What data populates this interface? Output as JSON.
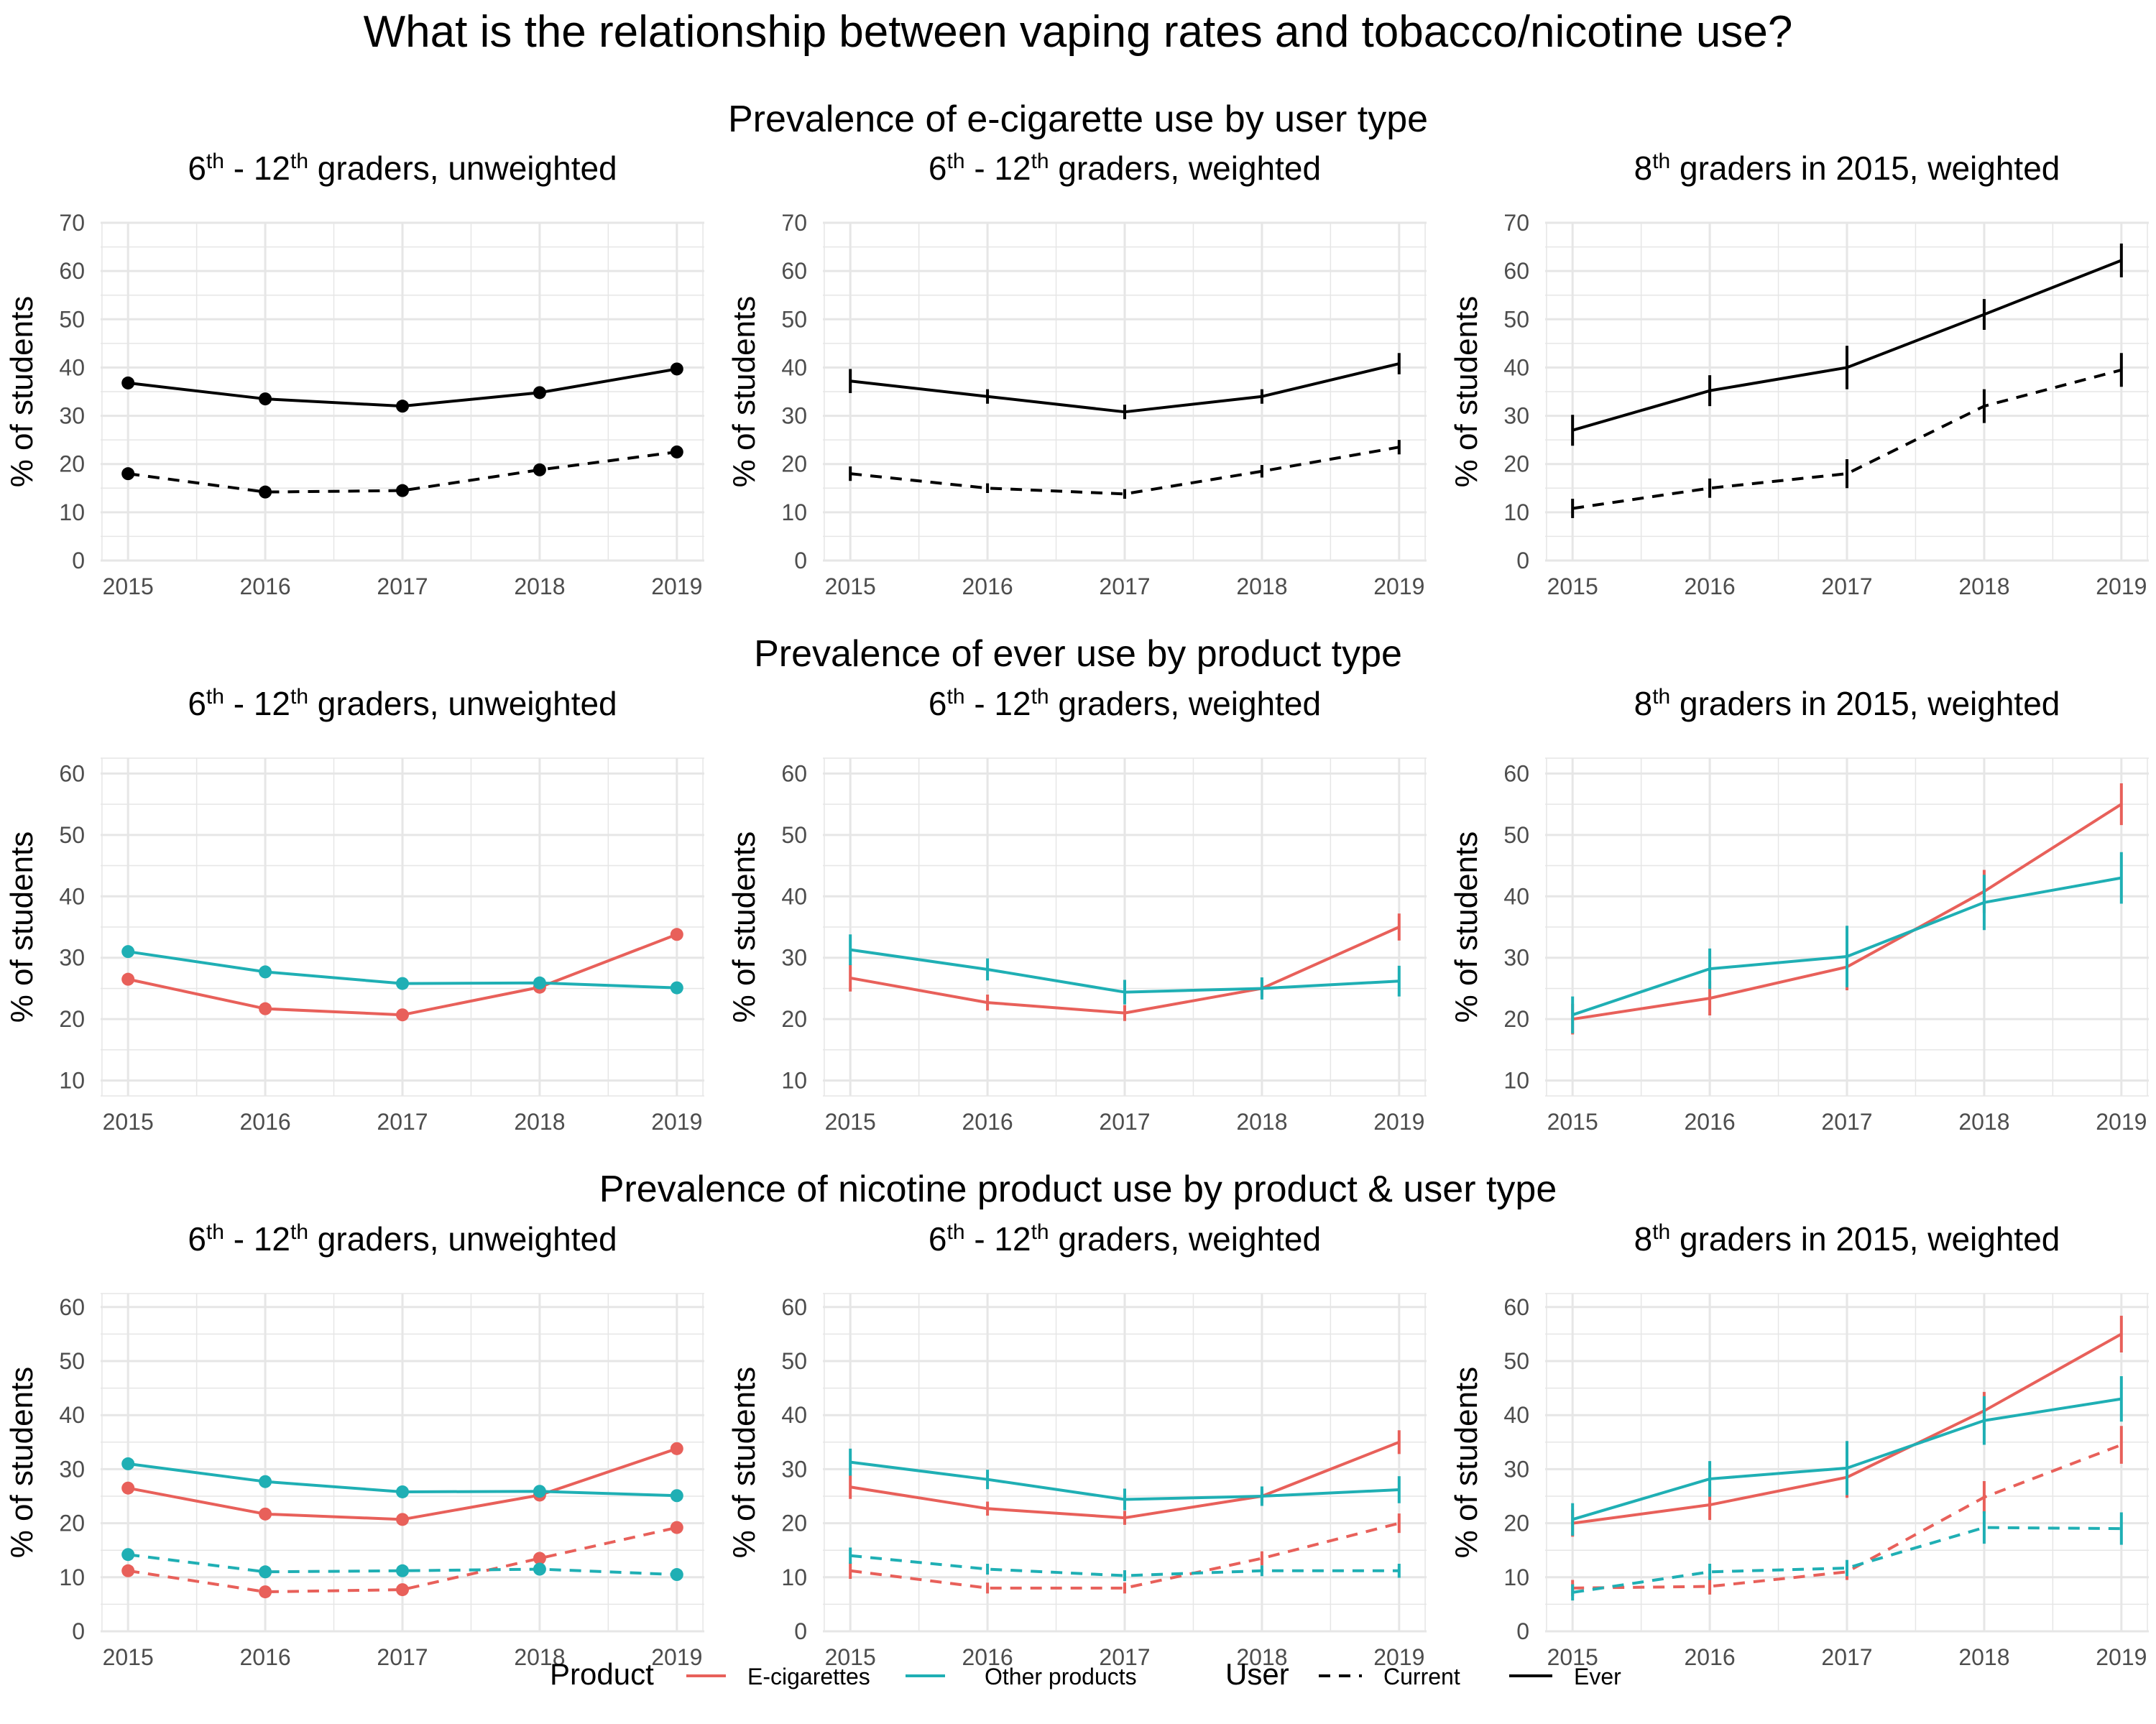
{
  "title": "What is the relationship between vaping rates and tobacco/nicotine use?",
  "colors": {
    "ecig": "#E8605A",
    "other": "#1FAFB4",
    "single": "#000000",
    "grid": "#E6E6E6"
  },
  "row_titles": [
    "Prevalence of e-cigarette use by user type",
    "Prevalence of ever use by product type",
    "Prevalence of nicotine product use by product & user type"
  ],
  "panel_titles": [
    {
      "a": "6",
      "a_sup": "th",
      "b": " - 12",
      "b_sup": "th",
      "c": " graders, unweighted"
    },
    {
      "a": "6",
      "a_sup": "th",
      "b": " - 12",
      "b_sup": "th",
      "c": " graders, weighted"
    },
    {
      "a": "8",
      "a_sup": "th",
      "b": " graders in 2015, weighted",
      "b_sup": "",
      "c": ""
    }
  ],
  "ylabel": "% of students",
  "legend": {
    "product_title": "Product",
    "product_items": [
      "E-cigarettes",
      "Other products"
    ],
    "user_title": "User",
    "user_items": [
      "Current",
      "Ever"
    ]
  },
  "chart_data": [
    {
      "type": "line",
      "row": 0,
      "col": 0,
      "markers": "points",
      "x": [
        2015,
        2016,
        2017,
        2018,
        2019
      ],
      "ylim": [
        0,
        70
      ],
      "yticks": [
        0,
        10,
        20,
        30,
        40,
        50,
        60,
        70
      ],
      "series": [
        {
          "product": "single",
          "user": "Ever",
          "values": [
            36.8,
            33.5,
            32.0,
            34.8,
            39.7
          ]
        },
        {
          "product": "single",
          "user": "Current",
          "values": [
            18.0,
            14.2,
            14.5,
            18.8,
            22.5
          ]
        }
      ]
    },
    {
      "type": "line",
      "row": 0,
      "col": 1,
      "markers": "errorbars",
      "x": [
        2015,
        2016,
        2017,
        2018,
        2019
      ],
      "ylim": [
        0,
        70
      ],
      "yticks": [
        0,
        10,
        20,
        30,
        40,
        50,
        60,
        70
      ],
      "series": [
        {
          "product": "single",
          "user": "Ever",
          "values": [
            37.2,
            34.0,
            30.8,
            34.0,
            40.8
          ],
          "err": [
            2.5,
            1.5,
            1.5,
            1.5,
            2.2
          ]
        },
        {
          "product": "single",
          "user": "Current",
          "values": [
            18.0,
            15.0,
            13.8,
            18.5,
            23.5
          ],
          "err": [
            1.5,
            1.0,
            1.0,
            1.3,
            1.5
          ]
        }
      ]
    },
    {
      "type": "line",
      "row": 0,
      "col": 2,
      "markers": "errorbars",
      "x": [
        2015,
        2016,
        2017,
        2018,
        2019
      ],
      "ylim": [
        0,
        70
      ],
      "yticks": [
        0,
        10,
        20,
        30,
        40,
        50,
        60,
        70
      ],
      "series": [
        {
          "product": "single",
          "user": "Ever",
          "values": [
            27.0,
            35.2,
            40.0,
            51.0,
            62.2
          ],
          "err": [
            3.2,
            3.2,
            4.5,
            3.2,
            3.5
          ]
        },
        {
          "product": "single",
          "user": "Current",
          "values": [
            10.8,
            15.0,
            18.0,
            32.0,
            39.5
          ],
          "err": [
            2.0,
            2.0,
            3.0,
            3.5,
            3.5
          ]
        }
      ]
    },
    {
      "type": "line",
      "row": 1,
      "col": 0,
      "markers": "points",
      "x": [
        2015,
        2016,
        2017,
        2018,
        2019
      ],
      "ylim": [
        7.5,
        62.5
      ],
      "yticks": [
        10,
        20,
        30,
        40,
        50,
        60
      ],
      "series": [
        {
          "product": "E-cigarettes",
          "user": "Ever",
          "values": [
            26.5,
            21.7,
            20.7,
            25.2,
            33.8
          ]
        },
        {
          "product": "Other products",
          "user": "Ever",
          "values": [
            31.0,
            27.7,
            25.8,
            25.9,
            25.1
          ]
        }
      ]
    },
    {
      "type": "line",
      "row": 1,
      "col": 1,
      "markers": "errorbars",
      "x": [
        2015,
        2016,
        2017,
        2018,
        2019
      ],
      "ylim": [
        7.5,
        62.5
      ],
      "yticks": [
        10,
        20,
        30,
        40,
        50,
        60
      ],
      "series": [
        {
          "product": "E-cigarettes",
          "user": "Ever",
          "values": [
            26.7,
            22.7,
            21.0,
            25.0,
            35.0
          ],
          "err": [
            2.2,
            1.3,
            1.3,
            1.3,
            2.2
          ]
        },
        {
          "product": "Other products",
          "user": "Ever",
          "values": [
            31.3,
            28.1,
            24.4,
            25.0,
            26.2
          ],
          "err": [
            2.5,
            1.8,
            2.0,
            1.8,
            2.5
          ]
        }
      ]
    },
    {
      "type": "line",
      "row": 1,
      "col": 2,
      "markers": "errorbars",
      "x": [
        2015,
        2016,
        2017,
        2018,
        2019
      ],
      "ylim": [
        7.5,
        62.5
      ],
      "yticks": [
        10,
        20,
        30,
        40,
        50,
        60
      ],
      "series": [
        {
          "product": "E-cigarettes",
          "user": "Ever",
          "values": [
            20.0,
            23.4,
            28.5,
            40.8,
            55.0
          ],
          "err": [
            2.5,
            2.8,
            3.8,
            3.5,
            3.4
          ]
        },
        {
          "product": "Other products",
          "user": "Ever",
          "values": [
            20.7,
            28.2,
            30.2,
            39.0,
            43.0
          ],
          "err": [
            3.0,
            3.3,
            5.0,
            4.5,
            4.2
          ]
        }
      ]
    },
    {
      "type": "line",
      "row": 2,
      "col": 0,
      "markers": "points",
      "x": [
        2015,
        2016,
        2017,
        2018,
        2019
      ],
      "ylim": [
        0,
        62.5
      ],
      "yticks": [
        0,
        10,
        20,
        30,
        40,
        50,
        60
      ],
      "series": [
        {
          "product": "E-cigarettes",
          "user": "Ever",
          "values": [
            26.5,
            21.7,
            20.7,
            25.2,
            33.8
          ]
        },
        {
          "product": "Other products",
          "user": "Ever",
          "values": [
            31.0,
            27.7,
            25.8,
            25.9,
            25.1
          ]
        },
        {
          "product": "E-cigarettes",
          "user": "Current",
          "values": [
            11.2,
            7.3,
            7.7,
            13.5,
            19.2
          ]
        },
        {
          "product": "Other products",
          "user": "Current",
          "values": [
            14.2,
            11.0,
            11.2,
            11.5,
            10.5
          ]
        }
      ]
    },
    {
      "type": "line",
      "row": 2,
      "col": 1,
      "markers": "errorbars",
      "x": [
        2015,
        2016,
        2017,
        2018,
        2019
      ],
      "ylim": [
        0,
        62.5
      ],
      "yticks": [
        0,
        10,
        20,
        30,
        40,
        50,
        60
      ],
      "series": [
        {
          "product": "E-cigarettes",
          "user": "Ever",
          "values": [
            26.7,
            22.7,
            21.0,
            25.0,
            35.0
          ],
          "err": [
            2.2,
            1.3,
            1.3,
            1.3,
            2.2
          ]
        },
        {
          "product": "Other products",
          "user": "Ever",
          "values": [
            31.3,
            28.1,
            24.4,
            25.0,
            26.2
          ],
          "err": [
            2.5,
            1.8,
            2.0,
            1.8,
            2.5
          ]
        },
        {
          "product": "E-cigarettes",
          "user": "Current",
          "values": [
            11.2,
            8.0,
            8.0,
            13.5,
            20.0
          ],
          "err": [
            1.5,
            1.0,
            1.0,
            1.3,
            1.8
          ]
        },
        {
          "product": "Other products",
          "user": "Current",
          "values": [
            14.0,
            11.5,
            10.3,
            11.2,
            11.2
          ],
          "err": [
            1.5,
            1.0,
            1.0,
            1.0,
            1.3
          ]
        }
      ]
    },
    {
      "type": "line",
      "row": 2,
      "col": 2,
      "markers": "errorbars",
      "x": [
        2015,
        2016,
        2017,
        2018,
        2019
      ],
      "ylim": [
        0,
        62.5
      ],
      "yticks": [
        0,
        10,
        20,
        30,
        40,
        50,
        60
      ],
      "series": [
        {
          "product": "E-cigarettes",
          "user": "Ever",
          "values": [
            20.0,
            23.4,
            28.5,
            40.8,
            55.0
          ],
          "err": [
            2.5,
            2.8,
            3.8,
            3.5,
            3.4
          ]
        },
        {
          "product": "Other products",
          "user": "Ever",
          "values": [
            20.7,
            28.2,
            30.2,
            39.0,
            43.0
          ],
          "err": [
            3.0,
            3.3,
            5.0,
            4.5,
            4.2
          ]
        },
        {
          "product": "E-cigarettes",
          "user": "Current",
          "values": [
            8.0,
            8.3,
            11.0,
            24.8,
            34.5
          ],
          "err": [
            1.5,
            1.5,
            1.5,
            3.0,
            3.5
          ]
        },
        {
          "product": "Other products",
          "user": "Current",
          "values": [
            7.2,
            11.0,
            11.7,
            19.2,
            19.0
          ],
          "err": [
            1.5,
            1.5,
            1.5,
            3.0,
            3.0
          ]
        }
      ]
    }
  ]
}
